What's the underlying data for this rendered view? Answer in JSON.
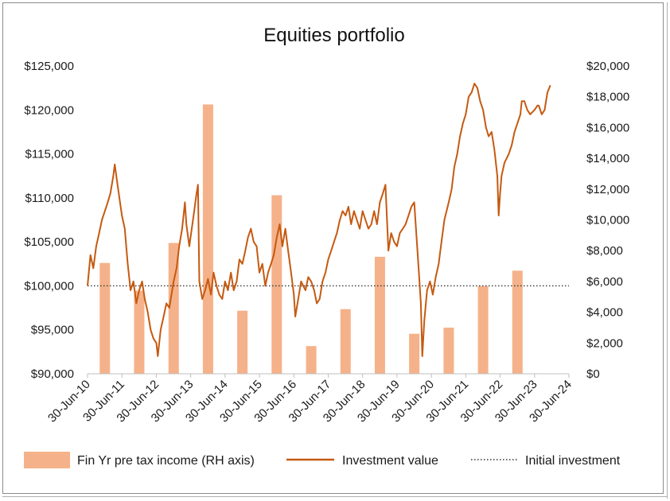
{
  "colors": {
    "bar": "#f5b28a",
    "line": "#c55a11",
    "initial": "#333333",
    "axis": "#bfbfbf"
  },
  "chart_data": {
    "type": "bar+line",
    "title": "Equities portfolio",
    "grid": false,
    "legend_position": "bottom",
    "x_tick_labels": [
      "30-Jun-10",
      "30-Jun-11",
      "30-Jun-12",
      "30-Jun-13",
      "30-Jun-14",
      "30-Jun-15",
      "30-Jun-16",
      "30-Jun-17",
      "30-Jun-18",
      "30-Jun-19",
      "30-Jun-20",
      "30-Jun-21",
      "30-Jun-22",
      "30-Jun-23",
      "30-Jun-24"
    ],
    "left_axis": {
      "ylim": [
        90000,
        125000
      ],
      "tick_labels": [
        "$90,000",
        "$95,000",
        "$100,000",
        "$105,000",
        "$110,000",
        "$115,000",
        "$120,000",
        "$125,000"
      ]
    },
    "right_axis": {
      "ylim": [
        0,
        20000
      ],
      "tick_labels": [
        "$0",
        "$2,000",
        "$4,000",
        "$6,000",
        "$8,000",
        "$10,000",
        "$12,000",
        "$14,000",
        "$16,000",
        "$18,000",
        "$20,000"
      ]
    },
    "legend": {
      "bars": "Fin Yr pre tax income (RH axis)",
      "line": "Investment value",
      "initial": "Initial investment"
    },
    "series": [
      {
        "name": "Fin Yr pre tax income (RH axis)",
        "kind": "bar",
        "axis": "right",
        "points": [
          {
            "date": "2010-12-31",
            "value": 7200
          },
          {
            "date": "2011-12-31",
            "value": 5400
          },
          {
            "date": "2012-12-31",
            "value": 8500
          },
          {
            "date": "2013-12-31",
            "value": 17500
          },
          {
            "date": "2014-12-31",
            "value": 4100
          },
          {
            "date": "2015-12-31",
            "value": 11600
          },
          {
            "date": "2016-12-31",
            "value": 1800
          },
          {
            "date": "2017-12-31",
            "value": 4200
          },
          {
            "date": "2018-12-31",
            "value": 7600
          },
          {
            "date": "2019-12-31",
            "value": 2600
          },
          {
            "date": "2020-12-31",
            "value": 3000
          },
          {
            "date": "2021-12-31",
            "value": 5700
          },
          {
            "date": "2022-12-31",
            "value": 6700
          }
        ]
      },
      {
        "name": "Investment value",
        "kind": "line",
        "axis": "left",
        "points": [
          [
            "2010-06-30",
            100000
          ],
          [
            "2010-07-31",
            103500
          ],
          [
            "2010-08-31",
            102000
          ],
          [
            "2010-09-30",
            104500
          ],
          [
            "2010-10-31",
            106000
          ],
          [
            "2010-11-30",
            107500
          ],
          [
            "2010-12-31",
            108500
          ],
          [
            "2011-01-31",
            109500
          ],
          [
            "2011-02-28",
            110500
          ],
          [
            "2011-03-31",
            112500
          ],
          [
            "2011-04-15",
            113800
          ],
          [
            "2011-05-15",
            111500
          ],
          [
            "2011-06-30",
            108000
          ],
          [
            "2011-07-31",
            106500
          ],
          [
            "2011-08-31",
            102500
          ],
          [
            "2011-09-30",
            99500
          ],
          [
            "2011-10-31",
            100500
          ],
          [
            "2011-11-30",
            98000
          ],
          [
            "2011-12-31",
            99500
          ],
          [
            "2012-01-31",
            100500
          ],
          [
            "2012-02-28",
            98500
          ],
          [
            "2012-03-31",
            97000
          ],
          [
            "2012-04-30",
            95000
          ],
          [
            "2012-05-31",
            94000
          ],
          [
            "2012-06-30",
            93500
          ],
          [
            "2012-07-15",
            92000
          ],
          [
            "2012-08-15",
            95000
          ],
          [
            "2012-09-15",
            96500
          ],
          [
            "2012-10-15",
            98000
          ],
          [
            "2012-11-15",
            97500
          ],
          [
            "2012-12-31",
            100500
          ],
          [
            "2013-01-31",
            102000
          ],
          [
            "2013-02-28",
            104500
          ],
          [
            "2013-03-31",
            106500
          ],
          [
            "2013-04-30",
            109500
          ],
          [
            "2013-05-15",
            107000
          ],
          [
            "2013-06-15",
            104500
          ],
          [
            "2013-07-31",
            108000
          ],
          [
            "2013-08-31",
            110500
          ],
          [
            "2013-09-15",
            111500
          ],
          [
            "2013-09-30",
            100500
          ],
          [
            "2013-10-31",
            98500
          ],
          [
            "2013-11-30",
            99500
          ],
          [
            "2013-12-31",
            100800
          ],
          [
            "2014-01-31",
            99000
          ],
          [
            "2014-02-28",
            101500
          ],
          [
            "2014-03-31",
            100000
          ],
          [
            "2014-04-30",
            99000
          ],
          [
            "2014-05-31",
            98500
          ],
          [
            "2014-06-30",
            100500
          ],
          [
            "2014-07-31",
            99500
          ],
          [
            "2014-08-31",
            101500
          ],
          [
            "2014-09-30",
            99500
          ],
          [
            "2014-10-31",
            100500
          ],
          [
            "2014-11-30",
            103000
          ],
          [
            "2014-12-31",
            102500
          ],
          [
            "2015-01-31",
            104000
          ],
          [
            "2015-02-28",
            105500
          ],
          [
            "2015-03-31",
            106500
          ],
          [
            "2015-04-30",
            105000
          ],
          [
            "2015-05-31",
            104500
          ],
          [
            "2015-06-30",
            101500
          ],
          [
            "2015-07-31",
            102500
          ],
          [
            "2015-08-31",
            100000
          ],
          [
            "2015-09-30",
            101500
          ],
          [
            "2015-10-31",
            102500
          ],
          [
            "2015-11-30",
            103500
          ],
          [
            "2015-12-31",
            105500
          ],
          [
            "2016-01-31",
            107000
          ],
          [
            "2016-02-29",
            104500
          ],
          [
            "2016-03-31",
            106500
          ],
          [
            "2016-04-30",
            104000
          ],
          [
            "2016-05-31",
            101500
          ],
          [
            "2016-06-30",
            99000
          ],
          [
            "2016-07-15",
            96500
          ],
          [
            "2016-08-15",
            98500
          ],
          [
            "2016-09-15",
            100500
          ],
          [
            "2016-10-31",
            99500
          ],
          [
            "2016-11-30",
            101000
          ],
          [
            "2016-12-31",
            100500
          ],
          [
            "2017-01-31",
            99500
          ],
          [
            "2017-02-28",
            98000
          ],
          [
            "2017-03-31",
            98500
          ],
          [
            "2017-04-30",
            100500
          ],
          [
            "2017-05-31",
            101500
          ],
          [
            "2017-06-30",
            103000
          ],
          [
            "2017-07-31",
            104000
          ],
          [
            "2017-08-31",
            105000
          ],
          [
            "2017-09-30",
            106000
          ],
          [
            "2017-10-31",
            107500
          ],
          [
            "2017-11-30",
            108500
          ],
          [
            "2017-12-31",
            108000
          ],
          [
            "2018-01-31",
            109000
          ],
          [
            "2018-02-28",
            107000
          ],
          [
            "2018-03-31",
            108500
          ],
          [
            "2018-04-30",
            107500
          ],
          [
            "2018-05-31",
            106500
          ],
          [
            "2018-06-30",
            108500
          ],
          [
            "2018-07-31",
            107500
          ],
          [
            "2018-08-31",
            106500
          ],
          [
            "2018-09-30",
            107000
          ],
          [
            "2018-10-31",
            108500
          ],
          [
            "2018-11-30",
            107000
          ],
          [
            "2018-12-31",
            109500
          ],
          [
            "2019-01-31",
            110500
          ],
          [
            "2019-02-28",
            111500
          ],
          [
            "2019-03-31",
            104000
          ],
          [
            "2019-04-30",
            106000
          ],
          [
            "2019-05-31",
            105000
          ],
          [
            "2019-06-30",
            104500
          ],
          [
            "2019-07-31",
            106000
          ],
          [
            "2019-08-31",
            106500
          ],
          [
            "2019-09-30",
            107000
          ],
          [
            "2019-10-31",
            108000
          ],
          [
            "2019-11-30",
            109000
          ],
          [
            "2019-12-31",
            109500
          ],
          [
            "2020-01-15",
            107000
          ],
          [
            "2020-02-15",
            102000
          ],
          [
            "2020-03-10",
            98000
          ],
          [
            "2020-03-25",
            92000
          ],
          [
            "2020-04-15",
            96000
          ],
          [
            "2020-05-15",
            99500
          ],
          [
            "2020-06-15",
            100500
          ],
          [
            "2020-07-15",
            99000
          ],
          [
            "2020-08-15",
            101000
          ],
          [
            "2020-09-15",
            102500
          ],
          [
            "2020-10-15",
            105000
          ],
          [
            "2020-11-15",
            107500
          ],
          [
            "2020-12-31",
            109500
          ],
          [
            "2021-01-31",
            111000
          ],
          [
            "2021-02-28",
            113500
          ],
          [
            "2021-03-31",
            115000
          ],
          [
            "2021-04-30",
            117000
          ],
          [
            "2021-05-31",
            118500
          ],
          [
            "2021-06-30",
            119500
          ],
          [
            "2021-07-31",
            121500
          ],
          [
            "2021-08-31",
            122000
          ],
          [
            "2021-09-30",
            123000
          ],
          [
            "2021-10-31",
            122500
          ],
          [
            "2021-11-30",
            121000
          ],
          [
            "2021-12-31",
            120000
          ],
          [
            "2022-01-31",
            118000
          ],
          [
            "2022-02-28",
            117000
          ],
          [
            "2022-03-31",
            117500
          ],
          [
            "2022-04-30",
            115500
          ],
          [
            "2022-05-31",
            112500
          ],
          [
            "2022-06-15",
            108000
          ],
          [
            "2022-06-30",
            110500
          ],
          [
            "2022-07-15",
            112500
          ],
          [
            "2022-08-15",
            114000
          ],
          [
            "2022-09-30",
            115000
          ],
          [
            "2022-10-31",
            116000
          ],
          [
            "2022-11-30",
            117500
          ],
          [
            "2022-12-31",
            118500
          ],
          [
            "2023-01-31",
            119500
          ],
          [
            "2023-02-15",
            121000
          ],
          [
            "2023-03-15",
            121000
          ],
          [
            "2023-04-15",
            120000
          ],
          [
            "2023-05-15",
            119500
          ],
          [
            "2023-06-30",
            120000
          ],
          [
            "2023-07-31",
            120500
          ],
          [
            "2023-08-15",
            120500
          ],
          [
            "2023-09-15",
            119500
          ],
          [
            "2023-10-15",
            120000
          ],
          [
            "2023-11-15",
            122000
          ],
          [
            "2023-12-15",
            122800
          ]
        ]
      },
      {
        "name": "Initial investment",
        "kind": "reference-line",
        "axis": "left",
        "value": 100000
      }
    ]
  }
}
